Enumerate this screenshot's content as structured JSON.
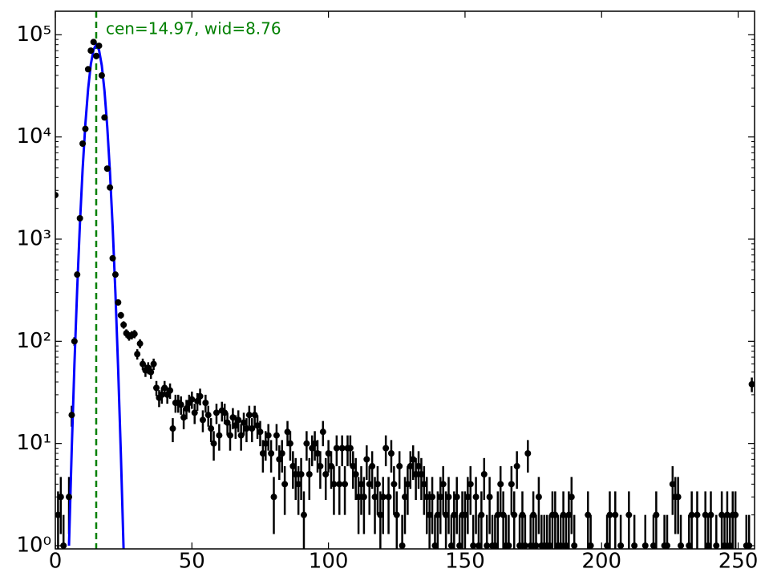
{
  "chart_data": {
    "type": "scatter",
    "annotation": "cen=14.97, wid=8.76",
    "annotation_color": "#008000",
    "vline": {
      "x": 14.97,
      "color": "#008000"
    },
    "log_y": true,
    "xlim": [
      0,
      256
    ],
    "ylim": [
      0.93,
      170000
    ],
    "xticks": [
      0,
      50,
      100,
      150,
      200,
      250
    ],
    "yticks": [
      {
        "value": 1,
        "label": "10⁰"
      },
      {
        "value": 10,
        "label": "10¹"
      },
      {
        "value": 100,
        "label": "10²"
      },
      {
        "value": 1000,
        "label": "10³"
      },
      {
        "value": 10000,
        "label": "10⁴"
      },
      {
        "value": 100000,
        "label": "10⁵"
      }
    ],
    "points": {
      "color": "#000000",
      "x": [
        0,
        1,
        2,
        3,
        5,
        6,
        7,
        8,
        9,
        10,
        11,
        12,
        13,
        14,
        15,
        16,
        17,
        18,
        19,
        20,
        21,
        22,
        23,
        24,
        25,
        26,
        27,
        28,
        29,
        30,
        31,
        32,
        33,
        34,
        35,
        36,
        37,
        38,
        39,
        40,
        41,
        42,
        43,
        44,
        45,
        46,
        47,
        48,
        49,
        50,
        51,
        52,
        53,
        54,
        55,
        56,
        57,
        58,
        59,
        60,
        61,
        62,
        63,
        64,
        65,
        66,
        67,
        68,
        69,
        70,
        71,
        72,
        73,
        74,
        75,
        76,
        77,
        78,
        79,
        80,
        81,
        82,
        83,
        84,
        85,
        86,
        87,
        88,
        89,
        90,
        91,
        92,
        93,
        94,
        95,
        96,
        97,
        98,
        99,
        100,
        101,
        102,
        103,
        104,
        105,
        106,
        107,
        108,
        109,
        110,
        111,
        112,
        113,
        114,
        115,
        116,
        117,
        118,
        119,
        120,
        121,
        122,
        123,
        124,
        125,
        126,
        127,
        128,
        129,
        130,
        131,
        132,
        133,
        134,
        135,
        136,
        137,
        138,
        139,
        140,
        141,
        142,
        143,
        144,
        145,
        146,
        147,
        148,
        149,
        150,
        151,
        152,
        153,
        154,
        155,
        156,
        157,
        158,
        159,
        160,
        161,
        162,
        163,
        164,
        165,
        166,
        167,
        168,
        169,
        170,
        171,
        172,
        173,
        174,
        175,
        176,
        177,
        178,
        179,
        180,
        181,
        182,
        183,
        184,
        185,
        186,
        187,
        188,
        189,
        190,
        195,
        196,
        202,
        203,
        205,
        207,
        210,
        212,
        216,
        219,
        220,
        223,
        224,
        226,
        227,
        228,
        229,
        232,
        233,
        235,
        238,
        239,
        240,
        242,
        244,
        245,
        246,
        247,
        248,
        249,
        253,
        254,
        255
      ],
      "values": [
        2700,
        2,
        3,
        1,
        3,
        19,
        100,
        450,
        1600,
        8600,
        12000,
        46000,
        70000,
        85000,
        62000,
        78000,
        40000,
        15500,
        4900,
        3200,
        650,
        450,
        240,
        180,
        145,
        120,
        112,
        115,
        118,
        75,
        95,
        60,
        52,
        55,
        50,
        60,
        35,
        28,
        30,
        35,
        30,
        33,
        14,
        25,
        25,
        24,
        18,
        22,
        25,
        27,
        20,
        26,
        29,
        17,
        25,
        19,
        14,
        10,
        20,
        12,
        21,
        20,
        16,
        12,
        18,
        15,
        17,
        12,
        16,
        14,
        19,
        14,
        19,
        15,
        13,
        8,
        10,
        12,
        8,
        3,
        12,
        7,
        8,
        4,
        13,
        10,
        6,
        5,
        4,
        5,
        2,
        10,
        5,
        9,
        10,
        8,
        6,
        13,
        5,
        8,
        6,
        4,
        9,
        4,
        9,
        4,
        9,
        9,
        6,
        5,
        3,
        4,
        3,
        7,
        4,
        6,
        3,
        4,
        2,
        3,
        9,
        3,
        8,
        4,
        2,
        6,
        1,
        3,
        4,
        6,
        7,
        5,
        6,
        5,
        4,
        3,
        2,
        3,
        1,
        2,
        3,
        4,
        2,
        3,
        1,
        2,
        3,
        1,
        2,
        2,
        3,
        4,
        1,
        3,
        1,
        2,
        5,
        1,
        3,
        1,
        1,
        2,
        4,
        2,
        1,
        1,
        4,
        2,
        6,
        1,
        2,
        1,
        8,
        1,
        2,
        1,
        3,
        1,
        1,
        1,
        1,
        2,
        2,
        1,
        1,
        2,
        1,
        2,
        3,
        1,
        2,
        1,
        1,
        2,
        2,
        1,
        2,
        1,
        1,
        1,
        2,
        1,
        1,
        4,
        3,
        3,
        1,
        1,
        2,
        2,
        2,
        1,
        2,
        1,
        2,
        1,
        2,
        1,
        2,
        2,
        1,
        1,
        38
      ],
      "errors": [
        52,
        1.4,
        1.7,
        1,
        1.7,
        4.4,
        10,
        21,
        40,
        93,
        110,
        214,
        265,
        292,
        249,
        279,
        200,
        124,
        70,
        57,
        25,
        21,
        15.5,
        13.4,
        12,
        11,
        10.6,
        10.7,
        10.9,
        8.7,
        9.7,
        7.7,
        7.2,
        7.4,
        7.1,
        7.7,
        5.9,
        5.3,
        5.5,
        5.9,
        5.5,
        5.7,
        3.7,
        5,
        5,
        4.9,
        4.2,
        4.7,
        5,
        5.2,
        4.5,
        5.1,
        5.4,
        4.1,
        5,
        4.4,
        3.7,
        3.2,
        4.5,
        3.5,
        4.6,
        4.5,
        4,
        3.5,
        4.2,
        3.9,
        4.1,
        3.5,
        4,
        3.7,
        4.4,
        3.7,
        4.4,
        3.9,
        3.6,
        2.8,
        3.2,
        3.5,
        2.8,
        1.7,
        3.5,
        2.6,
        2.8,
        2,
        3.6,
        3.2,
        2.4,
        2.2,
        2,
        2.2,
        1.4,
        3.2,
        2.2,
        3,
        3.2,
        2.8,
        2.4,
        3.6,
        2.2,
        2.8,
        2.4,
        2,
        3,
        2,
        3,
        2,
        3,
        3,
        2.4,
        2.2,
        1.7,
        2,
        1.7,
        2.6,
        2,
        2.4,
        1.7,
        2,
        1.4,
        1.7,
        3,
        1.7,
        2.8,
        2,
        1.4,
        2.4,
        1,
        1.7,
        2,
        2.4,
        2.6,
        2.2,
        2.4,
        2.2,
        2,
        1.7,
        1.4,
        1.7,
        1,
        1.4,
        1.7,
        2,
        1.4,
        1.7,
        1,
        1.4,
        1.7,
        1,
        1.4,
        1.4,
        1.7,
        2,
        1,
        1.7,
        1,
        1.4,
        2.2,
        1,
        1.7,
        1,
        1,
        1.4,
        2,
        1.4,
        1,
        1,
        2,
        1.4,
        2.4,
        1,
        1.4,
        1,
        2.8,
        1,
        1.4,
        1,
        1.7,
        1,
        1,
        1,
        1,
        1.4,
        1.4,
        1,
        1,
        1.4,
        1,
        1.4,
        1.7,
        1,
        1.4,
        1,
        1,
        1.4,
        1.4,
        1,
        1.4,
        1,
        1,
        1,
        1.4,
        1,
        1,
        2,
        1.7,
        1.7,
        1,
        1,
        1.4,
        1.4,
        1.4,
        1,
        1.4,
        1,
        1.4,
        1,
        1.4,
        1,
        1.4,
        1.4,
        1,
        1,
        6.2
      ]
    },
    "fit": {
      "color": "#0000ff",
      "x": [
        5,
        6,
        7,
        8,
        9,
        10,
        11,
        12,
        13,
        14,
        15,
        16,
        17,
        18,
        19,
        20,
        21,
        22,
        23,
        24,
        25
      ],
      "values": [
        1.0,
        8.7,
        60,
        323,
        1408,
        4864,
        13400,
        29430,
        51500,
        71900,
        80000,
        70950,
        50140,
        28240,
        12700,
        4536,
        1300,
        296,
        54,
        7.8,
        0.9
      ]
    }
  }
}
